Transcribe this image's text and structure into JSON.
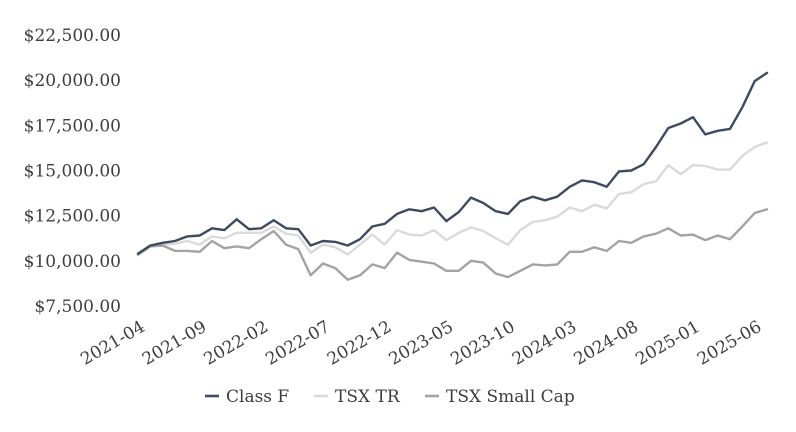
{
  "chart_data": {
    "type": "line",
    "title": "",
    "xlabel": "",
    "ylabel": "",
    "ylim": [
      7500,
      22500
    ],
    "y_ticks": [
      "$7,500.00",
      "$10,000.00",
      "$12,500.00",
      "$15,000.00",
      "$17,500.00",
      "$20,000.00",
      "$22,500.00"
    ],
    "x_ticks": [
      "2021-04",
      "2021-09",
      "2022-02",
      "2022-07",
      "2022-12",
      "2023-05",
      "2023-10",
      "2024-03",
      "2024-08",
      "2025-01",
      "2025-06"
    ],
    "grid": "none",
    "legend_position": "bottom",
    "start_month": "2021-04",
    "series": [
      {
        "name": "Class F",
        "color": "#3e4a61",
        "values": [
          10400,
          10850,
          11000,
          11100,
          11350,
          11400,
          11800,
          11700,
          12300,
          11750,
          11800,
          12250,
          11800,
          11750,
          10850,
          11100,
          11050,
          10850,
          11200,
          11900,
          12050,
          12600,
          12850,
          12750,
          12950,
          12200,
          12700,
          13500,
          13200,
          12750,
          12600,
          13300,
          13550,
          13350,
          13550,
          14100,
          14450,
          14350,
          14100,
          14950,
          15000,
          15350,
          16300,
          17350,
          17600,
          17950,
          17000,
          17200,
          17300,
          18500,
          19950,
          20400
        ]
      },
      {
        "name": "TSX TR",
        "color": "#dadada",
        "values": [
          10300,
          10800,
          10900,
          10950,
          11100,
          10900,
          11350,
          11250,
          11550,
          11550,
          11550,
          11900,
          11500,
          11400,
          10450,
          10900,
          10750,
          10350,
          10900,
          11450,
          10900,
          11700,
          11450,
          11400,
          11700,
          11150,
          11550,
          11850,
          11650,
          11250,
          10900,
          11700,
          12150,
          12250,
          12450,
          12950,
          12750,
          13100,
          12900,
          13700,
          13800,
          14250,
          14400,
          15300,
          14800,
          15300,
          15250,
          15050,
          15050,
          15800,
          16300,
          16550
        ]
      },
      {
        "name": "TSX Small Cap",
        "color": "#a3a3a3",
        "values": [
          10350,
          10800,
          10850,
          10550,
          10550,
          10500,
          11100,
          10700,
          10800,
          10700,
          11200,
          11650,
          10900,
          10650,
          9200,
          9850,
          9600,
          8950,
          9200,
          9800,
          9600,
          10450,
          10050,
          9950,
          9850,
          9450,
          9450,
          10000,
          9900,
          9300,
          9100,
          9450,
          9800,
          9750,
          9800,
          10500,
          10500,
          10750,
          10550,
          11100,
          11000,
          11350,
          11500,
          11800,
          11400,
          11450,
          11150,
          11400,
          11200,
          11900,
          12650,
          12850
        ]
      }
    ]
  }
}
